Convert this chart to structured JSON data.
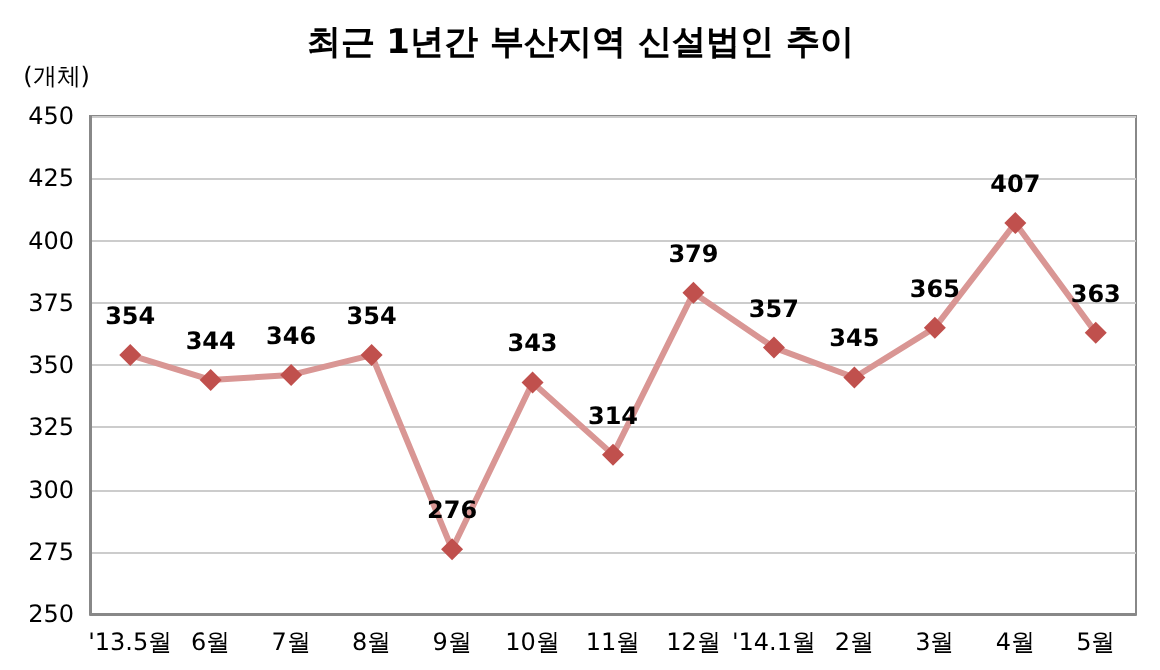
{
  "chart_data": {
    "type": "line",
    "title": "최근 1년간 부산지역 신설법인 추이",
    "ylabel": "(개체)",
    "categories": [
      "'13.5월",
      "6월",
      "7월",
      "8월",
      "9월",
      "10월",
      "11월",
      "12월",
      "'14.1월",
      "2월",
      "3월",
      "4월",
      "5월"
    ],
    "series": [
      {
        "color": "#d99694",
        "colors": [
          "#c0504d",
          "#c0504d",
          "#c0504d",
          "#c0504d",
          "#c0504d",
          "#c0504d",
          "#c0504d",
          "#c0504d",
          "#c0504d",
          "#c0504d",
          "#c0504d",
          "#c0504d",
          "#c0504d"
        ],
        "values": [
          354,
          344,
          346,
          354,
          276,
          343,
          314,
          379,
          357,
          345,
          365,
          407,
          363
        ]
      }
    ],
    "ylim": [
      250,
      450
    ],
    "yticks": [
      250,
      275,
      300,
      325,
      350,
      375,
      400,
      425,
      450
    ],
    "grid": "y",
    "marker": "diamond",
    "line_style": "solid",
    "data_labels": true
  }
}
